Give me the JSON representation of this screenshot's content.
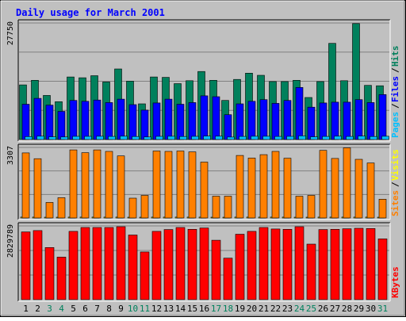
{
  "chart_data": {
    "type": "bar",
    "title": "Daily usage for March 2001",
    "categories": [
      "1",
      "2",
      "3",
      "4",
      "5",
      "6",
      "7",
      "8",
      "9",
      "10",
      "11",
      "12",
      "13",
      "14",
      "15",
      "16",
      "17",
      "18",
      "19",
      "20",
      "21",
      "22",
      "23",
      "24",
      "25",
      "26",
      "27",
      "28",
      "29",
      "30",
      "31"
    ],
    "weekend_days": [
      "3",
      "4",
      "10",
      "11",
      "17",
      "18",
      "24",
      "25",
      "31"
    ],
    "panels": [
      {
        "id": "hits-panel",
        "y_max_label": "27750",
        "ylim": [
          0,
          27750
        ],
        "grid": true,
        "series": [
          {
            "name": "Hits",
            "color": "#00805c",
            "values": [
              13000,
              14100,
              10500,
              9000,
              14900,
              14700,
              15200,
              13700,
              16800,
              13900,
              8500,
              14900,
              14800,
              13300,
              14000,
              16200,
              14100,
              9300,
              14300,
              15800,
              15300,
              13800,
              13800,
              14100,
              10000,
              13800,
              22900,
              14000,
              27600,
              12900,
              12800
            ]
          },
          {
            "name": "Files",
            "color": "#0000ff",
            "values": [
              8400,
              9800,
              8200,
              6700,
              9300,
              9100,
              9400,
              8800,
              9600,
              8300,
              7000,
              8700,
              9600,
              8400,
              8800,
              10400,
              10200,
              5900,
              8500,
              9100,
              9500,
              8600,
              9300,
              12400,
              7700,
              8700,
              8900,
              8900,
              9500,
              8800,
              10700
            ]
          },
          {
            "name": "Pages",
            "color": "#00c0ff",
            "values": [
              700,
              800,
              650,
              600,
              760,
              750,
              780,
              740,
              800,
              720,
              600,
              760,
              780,
              720,
              750,
              820,
              790,
              580,
              740,
              770,
              780,
              730,
              760,
              860,
              650,
              730,
              800,
              740,
              820,
              720,
              770
            ]
          }
        ],
        "legend": [
          {
            "text": "Pages",
            "color": "#00c0ff"
          },
          {
            "text": "Files",
            "color": "#0000ff"
          },
          {
            "text": "Hits",
            "color": "#00805c"
          }
        ]
      },
      {
        "id": "visits-panel",
        "y_max_label": "3307",
        "ylim": [
          0,
          3307
        ],
        "grid": true,
        "series": [
          {
            "name": "Visits",
            "color": "#ffff00",
            "values": [
              40,
              40,
              30,
              30,
              40,
              40,
              40,
              40,
              40,
              30,
              30,
              40,
              40,
              40,
              40,
              40,
              30,
              30,
              40,
              40,
              40,
              40,
              40,
              30,
              30,
              40,
              40,
              40,
              40,
              40,
              30
            ]
          },
          {
            "name": "Sites",
            "color": "#ff8000",
            "values": [
              3050,
              2780,
              730,
              950,
              3190,
              3060,
              3190,
              3120,
              2910,
              930,
              1060,
              3140,
              3120,
              3140,
              3100,
              2620,
              1020,
              1020,
              2930,
              2810,
              2970,
              3120,
              2800,
              1020,
              1060,
              3170,
              2790,
              3290,
              2750,
              2580,
              880
            ]
          }
        ],
        "legend": [
          {
            "text": "Sites",
            "color": "#ff8000"
          },
          {
            "text": "Visits",
            "color": "#ffff00"
          }
        ]
      },
      {
        "id": "kbytes-panel",
        "y_max_label": "2829789",
        "ylim": [
          0,
          2829789
        ],
        "grid": true,
        "series": [
          {
            "name": "KBytes",
            "color": "#ff0000",
            "values": [
              2600000,
              2650000,
              2000000,
              1630000,
              2620000,
              2770000,
              2770000,
              2770000,
              2800000,
              2480000,
              1830000,
              2620000,
              2690000,
              2770000,
              2700000,
              2750000,
              2280000,
              1590000,
              2510000,
              2620000,
              2770000,
              2710000,
              2700000,
              2800000,
              2130000,
              2690000,
              2700000,
              2720000,
              2740000,
              2730000,
              2330000
            ]
          }
        ],
        "legend": [
          {
            "text": "KBytes",
            "color": "#ff0000"
          }
        ]
      }
    ]
  }
}
